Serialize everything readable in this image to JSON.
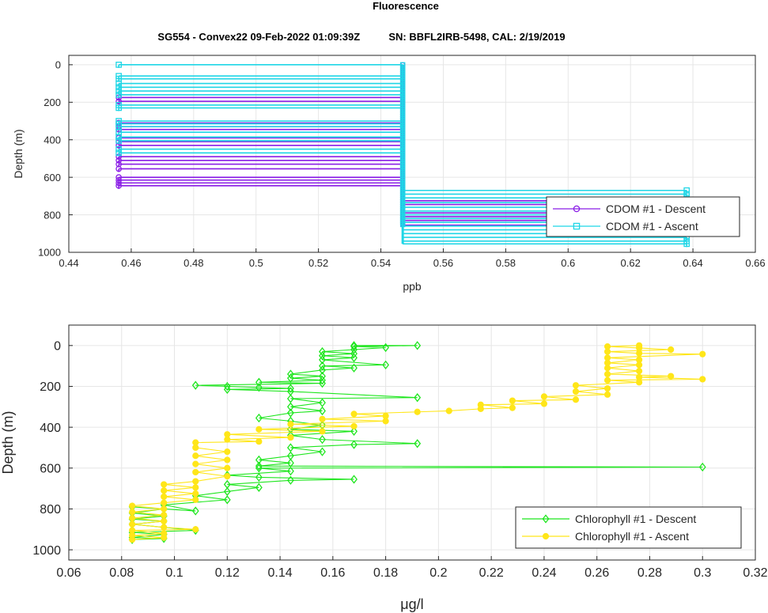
{
  "figure": {
    "title": "Fluorescence",
    "subtitle": "SG554 - Convex22 09-Feb-2022 01:09:39Z          SN: BBFL2IRB-5498, CAL: 2/19/2019"
  },
  "chart_data": [
    {
      "type": "line",
      "xlabel": "ppb",
      "ylabel": "Depth (m)",
      "xlim": [
        0.44,
        0.66
      ],
      "ylim": [
        1000,
        -50
      ],
      "y_reversed": true,
      "x_ticks": [
        "0.44",
        "0.46",
        "0.48",
        "0.5",
        "0.52",
        "0.54",
        "0.56",
        "0.58",
        "0.6",
        "0.62",
        "0.64",
        "0.66"
      ],
      "y_ticks": [
        "0",
        "200",
        "400",
        "600",
        "800",
        "1000"
      ],
      "grid": true,
      "legend_position": "bottom-right",
      "series": [
        {
          "name": "CDOM #1 - Descent",
          "color": "#8a1ee6",
          "marker": "circle",
          "spikes_from": 0.547,
          "spikes": [
            {
              "depth": 175,
              "x": 0.456
            },
            {
              "depth": 195,
              "x": 0.456
            },
            {
              "depth": 310,
              "x": 0.456
            },
            {
              "depth": 330,
              "x": 0.456
            },
            {
              "depth": 345,
              "x": 0.456
            },
            {
              "depth": 390,
              "x": 0.456
            },
            {
              "depth": 410,
              "x": 0.456
            },
            {
              "depth": 430,
              "x": 0.456
            },
            {
              "depth": 490,
              "x": 0.456
            },
            {
              "depth": 510,
              "x": 0.456
            },
            {
              "depth": 530,
              "x": 0.456
            },
            {
              "depth": 555,
              "x": 0.456
            },
            {
              "depth": 600,
              "x": 0.456
            },
            {
              "depth": 615,
              "x": 0.456
            },
            {
              "depth": 630,
              "x": 0.456
            },
            {
              "depth": 645,
              "x": 0.456
            },
            {
              "depth": 725,
              "x": 0.638
            },
            {
              "depth": 745,
              "x": 0.638
            },
            {
              "depth": 790,
              "x": 0.638
            },
            {
              "depth": 810,
              "x": 0.638
            },
            {
              "depth": 830,
              "x": 0.638
            },
            {
              "depth": 855,
              "x": 0.638
            }
          ]
        },
        {
          "name": "CDOM #1 - Ascent",
          "color": "#1fd6e6",
          "marker": "square",
          "spikes_from": 0.547,
          "spikes": [
            {
              "depth": 0,
              "x": 0.456
            },
            {
              "depth": 60,
              "x": 0.456
            },
            {
              "depth": 75,
              "x": 0.456
            },
            {
              "depth": 100,
              "x": 0.456
            },
            {
              "depth": 120,
              "x": 0.456
            },
            {
              "depth": 140,
              "x": 0.456
            },
            {
              "depth": 160,
              "x": 0.456
            },
            {
              "depth": 215,
              "x": 0.456
            },
            {
              "depth": 230,
              "x": 0.456
            },
            {
              "depth": 300,
              "x": 0.456
            },
            {
              "depth": 315,
              "x": 0.456
            },
            {
              "depth": 330,
              "x": 0.456
            },
            {
              "depth": 360,
              "x": 0.456
            },
            {
              "depth": 385,
              "x": 0.456
            },
            {
              "depth": 405,
              "x": 0.456
            },
            {
              "depth": 450,
              "x": 0.456
            },
            {
              "depth": 470,
              "x": 0.456
            },
            {
              "depth": 670,
              "x": 0.638
            },
            {
              "depth": 690,
              "x": 0.638
            },
            {
              "depth": 710,
              "x": 0.638
            },
            {
              "depth": 735,
              "x": 0.638
            },
            {
              "depth": 760,
              "x": 0.638
            },
            {
              "depth": 780,
              "x": 0.638
            },
            {
              "depth": 800,
              "x": 0.638
            },
            {
              "depth": 820,
              "x": 0.638
            },
            {
              "depth": 840,
              "x": 0.638
            },
            {
              "depth": 860,
              "x": 0.638
            },
            {
              "depth": 880,
              "x": 0.638
            },
            {
              "depth": 900,
              "x": 0.638
            },
            {
              "depth": 920,
              "x": 0.638
            },
            {
              "depth": 940,
              "x": 0.638
            },
            {
              "depth": 955,
              "x": 0.638
            }
          ]
        }
      ]
    },
    {
      "type": "line",
      "xlabel": "μg/l",
      "ylabel": "Depth (m)",
      "xlim": [
        0.06,
        0.32
      ],
      "ylim": [
        1050,
        -100
      ],
      "y_reversed": true,
      "x_ticks": [
        "0.06",
        "0.08",
        "0.1",
        "0.12",
        "0.14",
        "0.16",
        "0.18",
        "0.2",
        "0.22",
        "0.24",
        "0.26",
        "0.28",
        "0.3",
        "0.32"
      ],
      "y_ticks": [
        "0",
        "200",
        "400",
        "600",
        "800",
        "1000"
      ],
      "grid": true,
      "legend_position": "bottom-right",
      "series": [
        {
          "name": "Chlorophyll #1 - Descent",
          "color": "#1ee61e",
          "marker": "diamond",
          "points": [
            {
              "x": 0.168,
              "y": 0
            },
            {
              "x": 0.192,
              "y": 0
            },
            {
              "x": 0.168,
              "y": 5
            },
            {
              "x": 0.18,
              "y": 10
            },
            {
              "x": 0.168,
              "y": 20
            },
            {
              "x": 0.156,
              "y": 30
            },
            {
              "x": 0.168,
              "y": 40
            },
            {
              "x": 0.156,
              "y": 50
            },
            {
              "x": 0.168,
              "y": 60
            },
            {
              "x": 0.156,
              "y": 70
            },
            {
              "x": 0.18,
              "y": 95
            },
            {
              "x": 0.156,
              "y": 100
            },
            {
              "x": 0.168,
              "y": 110
            },
            {
              "x": 0.156,
              "y": 120
            },
            {
              "x": 0.144,
              "y": 140
            },
            {
              "x": 0.156,
              "y": 150
            },
            {
              "x": 0.144,
              "y": 160
            },
            {
              "x": 0.156,
              "y": 170
            },
            {
              "x": 0.132,
              "y": 180
            },
            {
              "x": 0.156,
              "y": 185
            },
            {
              "x": 0.108,
              "y": 195
            },
            {
              "x": 0.12,
              "y": 200
            },
            {
              "x": 0.132,
              "y": 205
            },
            {
              "x": 0.144,
              "y": 210
            },
            {
              "x": 0.12,
              "y": 215
            },
            {
              "x": 0.144,
              "y": 225
            },
            {
              "x": 0.192,
              "y": 255
            },
            {
              "x": 0.144,
              "y": 260
            },
            {
              "x": 0.156,
              "y": 280
            },
            {
              "x": 0.144,
              "y": 300
            },
            {
              "x": 0.156,
              "y": 320
            },
            {
              "x": 0.144,
              "y": 330
            },
            {
              "x": 0.132,
              "y": 355
            },
            {
              "x": 0.144,
              "y": 370
            },
            {
              "x": 0.156,
              "y": 390
            },
            {
              "x": 0.144,
              "y": 410
            },
            {
              "x": 0.168,
              "y": 420
            },
            {
              "x": 0.144,
              "y": 440
            },
            {
              "x": 0.156,
              "y": 460
            },
            {
              "x": 0.192,
              "y": 480
            },
            {
              "x": 0.168,
              "y": 485
            },
            {
              "x": 0.144,
              "y": 500
            },
            {
              "x": 0.156,
              "y": 520
            },
            {
              "x": 0.144,
              "y": 540
            },
            {
              "x": 0.132,
              "y": 560
            },
            {
              "x": 0.144,
              "y": 575
            },
            {
              "x": 0.132,
              "y": 590
            },
            {
              "x": 0.3,
              "y": 595
            },
            {
              "x": 0.132,
              "y": 600
            },
            {
              "x": 0.144,
              "y": 615
            },
            {
              "x": 0.12,
              "y": 635
            },
            {
              "x": 0.132,
              "y": 645
            },
            {
              "x": 0.168,
              "y": 655
            },
            {
              "x": 0.144,
              "y": 660
            },
            {
              "x": 0.12,
              "y": 680
            },
            {
              "x": 0.132,
              "y": 695
            },
            {
              "x": 0.12,
              "y": 715
            },
            {
              "x": 0.108,
              "y": 735
            },
            {
              "x": 0.12,
              "y": 755
            },
            {
              "x": 0.096,
              "y": 780
            },
            {
              "x": 0.108,
              "y": 810
            },
            {
              "x": 0.084,
              "y": 790
            },
            {
              "x": 0.096,
              "y": 800
            },
            {
              "x": 0.084,
              "y": 820
            },
            {
              "x": 0.096,
              "y": 835
            },
            {
              "x": 0.084,
              "y": 850
            },
            {
              "x": 0.096,
              "y": 860
            },
            {
              "x": 0.084,
              "y": 875
            },
            {
              "x": 0.096,
              "y": 890
            },
            {
              "x": 0.108,
              "y": 905
            },
            {
              "x": 0.084,
              "y": 915
            },
            {
              "x": 0.096,
              "y": 925
            },
            {
              "x": 0.084,
              "y": 940
            },
            {
              "x": 0.096,
              "y": 945
            },
            {
              "x": 0.084,
              "y": 950
            }
          ]
        },
        {
          "name": "Chlorophyll #1 - Ascent",
          "color": "#ffe619",
          "marker": "circle-filled",
          "points": [
            {
              "x": 0.084,
              "y": 950
            },
            {
              "x": 0.096,
              "y": 940
            },
            {
              "x": 0.084,
              "y": 930
            },
            {
              "x": 0.096,
              "y": 920
            },
            {
              "x": 0.084,
              "y": 905
            },
            {
              "x": 0.108,
              "y": 900
            },
            {
              "x": 0.096,
              "y": 890
            },
            {
              "x": 0.084,
              "y": 875
            },
            {
              "x": 0.096,
              "y": 860
            },
            {
              "x": 0.084,
              "y": 845
            },
            {
              "x": 0.096,
              "y": 830
            },
            {
              "x": 0.084,
              "y": 815
            },
            {
              "x": 0.096,
              "y": 800
            },
            {
              "x": 0.084,
              "y": 785
            },
            {
              "x": 0.096,
              "y": 770
            },
            {
              "x": 0.108,
              "y": 755
            },
            {
              "x": 0.096,
              "y": 740
            },
            {
              "x": 0.108,
              "y": 725
            },
            {
              "x": 0.096,
              "y": 710
            },
            {
              "x": 0.108,
              "y": 695
            },
            {
              "x": 0.096,
              "y": 680
            },
            {
              "x": 0.108,
              "y": 665
            },
            {
              "x": 0.12,
              "y": 640
            },
            {
              "x": 0.108,
              "y": 620
            },
            {
              "x": 0.12,
              "y": 600
            },
            {
              "x": 0.108,
              "y": 580
            },
            {
              "x": 0.12,
              "y": 560
            },
            {
              "x": 0.108,
              "y": 540
            },
            {
              "x": 0.12,
              "y": 520
            },
            {
              "x": 0.108,
              "y": 500
            },
            {
              "x": 0.108,
              "y": 475
            },
            {
              "x": 0.132,
              "y": 470
            },
            {
              "x": 0.12,
              "y": 460
            },
            {
              "x": 0.144,
              "y": 450
            },
            {
              "x": 0.12,
              "y": 435
            },
            {
              "x": 0.156,
              "y": 420
            },
            {
              "x": 0.132,
              "y": 410
            },
            {
              "x": 0.168,
              "y": 395
            },
            {
              "x": 0.144,
              "y": 385
            },
            {
              "x": 0.18,
              "y": 370
            },
            {
              "x": 0.156,
              "y": 360
            },
            {
              "x": 0.18,
              "y": 345
            },
            {
              "x": 0.168,
              "y": 335
            },
            {
              "x": 0.192,
              "y": 325
            },
            {
              "x": 0.204,
              "y": 320
            },
            {
              "x": 0.216,
              "y": 310
            },
            {
              "x": 0.228,
              "y": 305
            },
            {
              "x": 0.216,
              "y": 290
            },
            {
              "x": 0.24,
              "y": 285
            },
            {
              "x": 0.228,
              "y": 270
            },
            {
              "x": 0.252,
              "y": 265
            },
            {
              "x": 0.24,
              "y": 250
            },
            {
              "x": 0.264,
              "y": 240
            },
            {
              "x": 0.252,
              "y": 225
            },
            {
              "x": 0.264,
              "y": 210
            },
            {
              "x": 0.252,
              "y": 195
            },
            {
              "x": 0.276,
              "y": 180
            },
            {
              "x": 0.264,
              "y": 170
            },
            {
              "x": 0.3,
              "y": 165
            },
            {
              "x": 0.276,
              "y": 155
            },
            {
              "x": 0.288,
              "y": 150
            },
            {
              "x": 0.264,
              "y": 140
            },
            {
              "x": 0.276,
              "y": 125
            },
            {
              "x": 0.264,
              "y": 110
            },
            {
              "x": 0.276,
              "y": 95
            },
            {
              "x": 0.264,
              "y": 85
            },
            {
              "x": 0.276,
              "y": 70
            },
            {
              "x": 0.264,
              "y": 60
            },
            {
              "x": 0.3,
              "y": 42
            },
            {
              "x": 0.276,
              "y": 38
            },
            {
              "x": 0.264,
              "y": 30
            },
            {
              "x": 0.288,
              "y": 20
            },
            {
              "x": 0.276,
              "y": 12
            },
            {
              "x": 0.264,
              "y": 5
            },
            {
              "x": 0.276,
              "y": 0
            }
          ]
        }
      ]
    }
  ]
}
